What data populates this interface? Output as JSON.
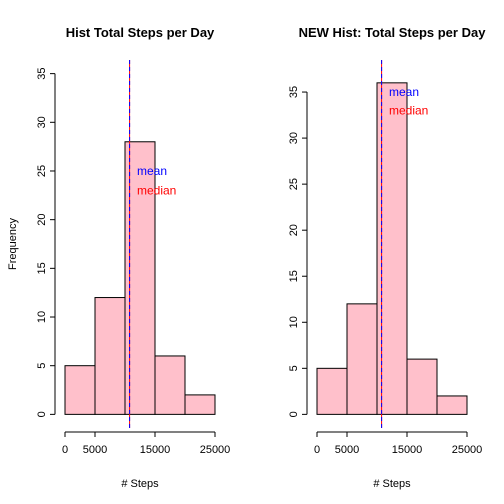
{
  "chart_data": [
    {
      "type": "bar",
      "title": "Hist Total Steps per Day",
      "xlabel": "# Steps",
      "ylabel": "Frequency",
      "bins": [
        [
          0,
          5000
        ],
        [
          5000,
          10000
        ],
        [
          10000,
          15000
        ],
        [
          15000,
          20000
        ],
        [
          20000,
          25000
        ]
      ],
      "values": [
        5,
        12,
        28,
        6,
        2
      ],
      "xlim": [
        0,
        25000
      ],
      "ylim": [
        0,
        35
      ],
      "xticks": [
        0,
        5000,
        15000,
        25000
      ],
      "xtick_labels": [
        "0",
        "5000",
        "15000",
        "25000"
      ],
      "yticks": [
        0,
        5,
        10,
        15,
        20,
        25,
        30,
        35
      ],
      "ytick_labels": [
        "0",
        "5",
        "10",
        "15",
        "20",
        "25",
        "30",
        "35"
      ],
      "bar_fill": "#ffc0cb",
      "mean": 10766,
      "median": 10765,
      "mean_color": "#0000ff",
      "median_color": "#ff0000",
      "annotations": [
        {
          "text": "mean",
          "color": "#0000ff",
          "x": 11500,
          "y": 25
        },
        {
          "text": "median",
          "color": "#ff0000",
          "x": 11500,
          "y": 23
        }
      ],
      "grid": false,
      "legend": "none"
    },
    {
      "type": "bar",
      "title": "NEW Hist: Total Steps per Day",
      "xlabel": "# Steps",
      "ylabel": "",
      "bins": [
        [
          0,
          5000
        ],
        [
          5000,
          10000
        ],
        [
          10000,
          15000
        ],
        [
          15000,
          20000
        ],
        [
          20000,
          25000
        ]
      ],
      "values": [
        5,
        12,
        36,
        6,
        2
      ],
      "xlim": [
        0,
        25000
      ],
      "ylim": [
        0,
        37
      ],
      "xticks": [
        0,
        5000,
        15000,
        25000
      ],
      "xtick_labels": [
        "0",
        "5000",
        "15000",
        "25000"
      ],
      "yticks": [
        0,
        5,
        10,
        15,
        20,
        25,
        30,
        35
      ],
      "ytick_labels": [
        "0",
        "5",
        "10",
        "15",
        "20",
        "25",
        "30",
        "35"
      ],
      "bar_fill": "#ffc0cb",
      "mean": 10766,
      "median": 10766,
      "mean_color": "#0000ff",
      "median_color": "#ff0000",
      "annotations": [
        {
          "text": "mean",
          "color": "#0000ff",
          "x": 11500,
          "y": 35
        },
        {
          "text": "median",
          "color": "#ff0000",
          "x": 11500,
          "y": 33
        }
      ],
      "grid": false,
      "legend": "none"
    }
  ]
}
